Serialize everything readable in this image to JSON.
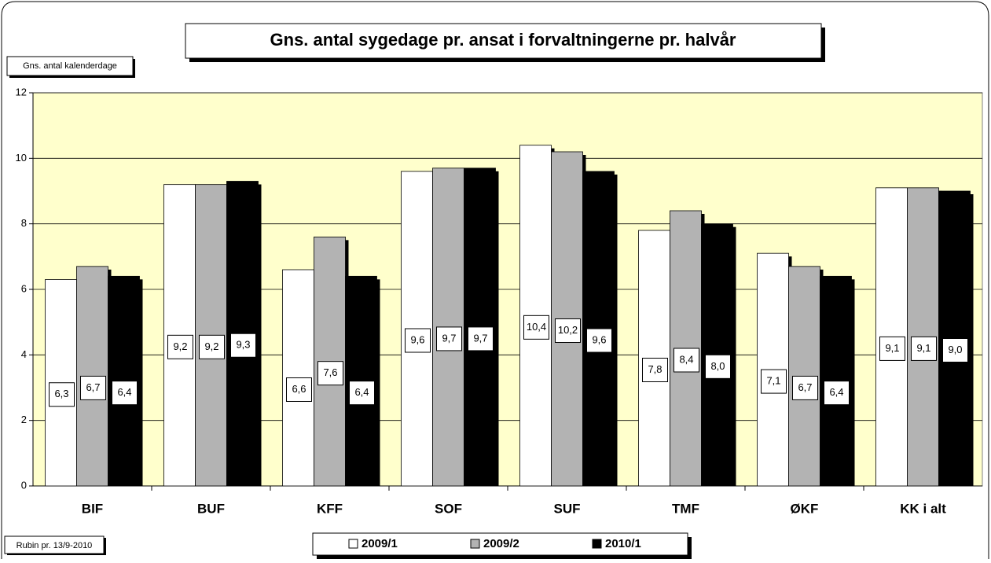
{
  "chart_data": {
    "type": "bar",
    "title": "Gns. antal sygedage pr. ansat i forvaltningerne pr. halvår",
    "y_label": "Gns. antal kalenderdage",
    "footnote": "Rubin pr. 13/9-2010",
    "categories": [
      "BIF",
      "BUF",
      "KFF",
      "SOF",
      "SUF",
      "TMF",
      "ØKF",
      "KK i alt"
    ],
    "series": [
      {
        "name": "2009/1",
        "color": "#ffffff",
        "values": [
          6.3,
          9.2,
          6.6,
          9.6,
          10.4,
          7.8,
          7.1,
          9.1
        ],
        "value_labels": [
          "6,3",
          "9,2",
          "6,6",
          "9,6",
          "10,4",
          "7,8",
          "7,1",
          "9,1"
        ]
      },
      {
        "name": "2009/2",
        "color": "#b3b3b3",
        "values": [
          6.7,
          9.2,
          7.6,
          9.7,
          10.2,
          8.4,
          6.7,
          9.1
        ],
        "value_labels": [
          "6,7",
          "9,2",
          "7,6",
          "9,7",
          "10,2",
          "8,4",
          "6,7",
          "9,1"
        ]
      },
      {
        "name": "2010/1",
        "color": "#000000",
        "values": [
          6.4,
          9.3,
          6.4,
          9.7,
          9.6,
          8.0,
          6.4,
          9.0
        ],
        "value_labels": [
          "6,4",
          "9,3",
          "6,4",
          "9,7",
          "9,6",
          "8,0",
          "6,4",
          "9,0"
        ]
      }
    ],
    "ylim": [
      0,
      12
    ],
    "yticks": [
      0,
      2,
      4,
      6,
      8,
      10,
      12
    ],
    "grid": true,
    "legend": "bottom",
    "plot_background": "#ffffcc"
  }
}
